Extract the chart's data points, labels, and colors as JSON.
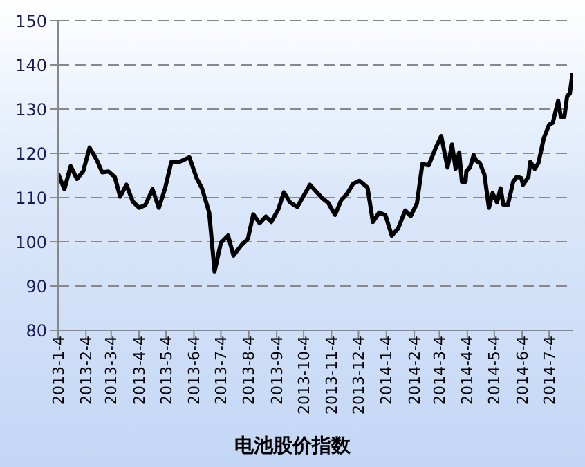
{
  "chart_data": {
    "type": "line",
    "title": "电池股价指数",
    "x": [
      "2013-01-04",
      "2013-01-11",
      "2013-01-18",
      "2013-01-25",
      "2013-02-01",
      "2013-02-08",
      "2013-02-16",
      "2013-02-22",
      "2013-03-01",
      "2013-03-08",
      "2013-03-14",
      "2013-03-21",
      "2013-03-28",
      "2013-04-04",
      "2013-04-11",
      "2013-04-19",
      "2013-04-26",
      "2013-05-03",
      "2013-05-10",
      "2013-05-19",
      "2013-05-30",
      "2013-06-07",
      "2013-06-13",
      "2013-06-21",
      "2013-06-27",
      "2013-07-04",
      "2013-07-12",
      "2013-07-18",
      "2013-07-27",
      "2013-08-03",
      "2013-08-09",
      "2013-08-16",
      "2013-08-23",
      "2013-08-29",
      "2013-09-06",
      "2013-09-12",
      "2013-09-19",
      "2013-09-27",
      "2013-10-11",
      "2013-10-25",
      "2013-10-31",
      "2013-11-08",
      "2013-11-15",
      "2013-11-21",
      "2013-11-28",
      "2013-12-05",
      "2013-12-14",
      "2013-12-20",
      "2013-12-27",
      "2014-01-03",
      "2014-01-10",
      "2014-01-17",
      "2014-01-25",
      "2014-01-31",
      "2014-02-07",
      "2014-02-13",
      "2014-02-20",
      "2014-02-28",
      "2014-03-06",
      "2014-03-13",
      "2014-03-18",
      "2014-03-22",
      "2014-03-26",
      "2014-03-29",
      "2014-04-02",
      "2014-04-03",
      "2014-04-07",
      "2014-04-11",
      "2014-04-14",
      "2014-04-18",
      "2014-04-23",
      "2014-04-28",
      "2014-05-02",
      "2014-05-07",
      "2014-05-11",
      "2014-05-14",
      "2014-05-19",
      "2014-05-25",
      "2014-05-29",
      "2014-06-03",
      "2014-06-05",
      "2014-06-11",
      "2014-06-13",
      "2014-06-18",
      "2014-06-22",
      "2014-06-28",
      "2014-07-04",
      "2014-07-08",
      "2014-07-14",
      "2014-07-17",
      "2014-07-21",
      "2014-07-24",
      "2014-07-27",
      "2014-07-30"
    ],
    "series": [
      {
        "color": "#000000",
        "values": [
          115.4,
          111.9,
          117.1,
          114.2,
          116.0,
          121.3,
          118.5,
          115.7,
          115.9,
          114.7,
          110.2,
          112.9,
          109.1,
          107.7,
          108.3,
          111.9,
          107.7,
          112.1,
          118.1,
          118.1,
          119.1,
          114.4,
          112.1,
          106.6,
          93.3,
          99.8,
          101.4,
          96.9,
          99.3,
          100.6,
          106.2,
          104.2,
          105.7,
          104.5,
          107.4,
          111.2,
          108.9,
          107.9,
          112.9,
          109.8,
          108.9,
          106.1,
          109.5,
          110.8,
          113.1,
          113.8,
          112.3,
          104.5,
          106.6,
          106.0,
          101.4,
          103.0,
          107.1,
          105.8,
          108.7,
          117.6,
          117.3,
          121.3,
          123.9,
          116.8,
          122.0,
          116.5,
          120.2,
          113.6,
          113.6,
          116.0,
          116.8,
          119.6,
          118.3,
          117.8,
          115.2,
          107.7,
          111.0,
          108.9,
          112.1,
          108.4,
          108.3,
          113.6,
          114.7,
          114.4,
          112.9,
          114.7,
          118.1,
          116.5,
          117.8,
          123.4,
          126.5,
          126.9,
          131.9,
          128.3,
          128.3,
          133.0,
          133.5,
          138.2
        ]
      }
    ],
    "xlim": [
      "2013-01-04",
      "2014-07-30"
    ],
    "xticks": [
      {
        "value": "2013-01-04",
        "label": "2013-1-4"
      },
      {
        "value": "2013-02-04",
        "label": "2013-2-4"
      },
      {
        "value": "2013-03-04",
        "label": "2013-3-4"
      },
      {
        "value": "2013-04-04",
        "label": "2013-4-4"
      },
      {
        "value": "2013-05-04",
        "label": "2013-5-4"
      },
      {
        "value": "2013-06-04",
        "label": "2013-6-4"
      },
      {
        "value": "2013-07-04",
        "label": "2013-7-4"
      },
      {
        "value": "2013-08-04",
        "label": "2013-8-4"
      },
      {
        "value": "2013-09-04",
        "label": "2013-9-4"
      },
      {
        "value": "2013-10-04",
        "label": "2013-10-4"
      },
      {
        "value": "2013-11-04",
        "label": "2013-11-4"
      },
      {
        "value": "2013-12-04",
        "label": "2013-12-4"
      },
      {
        "value": "2014-01-04",
        "label": "2014-1-4"
      },
      {
        "value": "2014-02-04",
        "label": "2014-2-4"
      },
      {
        "value": "2014-03-04",
        "label": "2014-3-4"
      },
      {
        "value": "2014-04-04",
        "label": "2014-4-4"
      },
      {
        "value": "2014-05-04",
        "label": "2014-5-4"
      },
      {
        "value": "2014-06-04",
        "label": "2014-6-4"
      },
      {
        "value": "2014-07-04",
        "label": "2014-7-4"
      }
    ],
    "ylim": [
      80,
      150
    ],
    "yticks": [
      80,
      90,
      100,
      110,
      120,
      130,
      140,
      150
    ],
    "grid": "y",
    "legend": false,
    "marker": "none",
    "line_style": "solid"
  }
}
